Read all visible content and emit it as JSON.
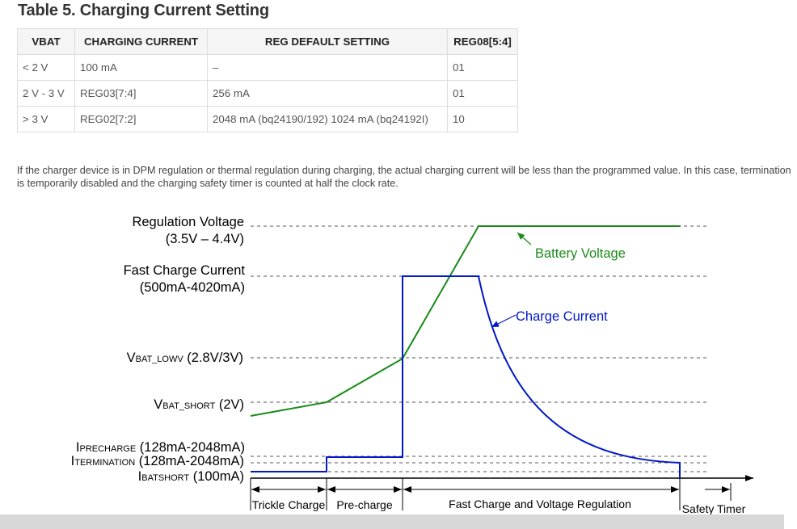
{
  "table_title": "Table 5. Charging Current Setting",
  "table": {
    "headers": [
      "VBAT",
      "CHARGING CURRENT",
      "REG DEFAULT SETTING",
      "REG08[5:4]"
    ],
    "rows": [
      [
        "< 2 V",
        "100 mA",
        "–",
        "01"
      ],
      [
        "2 V - 3 V",
        "REG03[7:4]",
        "256 mA",
        "01"
      ],
      [
        "> 3 V",
        "REG02[7:2]",
        "2048 mA (bq24190/192) 1024 mA (bq24192I)",
        "10"
      ]
    ]
  },
  "paragraph": "If the charger device is in DPM regulation or thermal regulation during charging, the actual charging current will be less than the programmed value. In this case, termination is temporarily disabled and the charging safety timer is counted at half the clock rate.",
  "figure": {
    "labels": {
      "reg_voltage_1": "Regulation Voltage",
      "reg_voltage_2": "(3.5V – 4.4V)",
      "fast_current_1": "Fast Charge Current",
      "fast_current_2": "(500mA-4020mA)",
      "vbat_lowv_main": "V",
      "vbat_lowv_sub": "BAT_LOWV",
      "vbat_lowv_val": " (2.8V/3V)",
      "vbat_short_main": "V",
      "vbat_short_sub": "BAT_SHORT",
      "vbat_short_val": " (2V)",
      "iprecharge_main": "I",
      "iprecharge_sub": "PRECHARGE",
      "iprecharge_val": " (128mA-2048mA)",
      "itermination_main": "I",
      "itermination_sub": "TERMINATION",
      "itermination_val": " (128mA-2048mA)",
      "ibatshort_main": "I",
      "ibatshort_sub": "BATSHORT",
      "ibatshort_val": " (100mA)",
      "battery_voltage": "Battery Voltage",
      "charge_current": "Charge Current"
    },
    "phases": {
      "trickle": "Trickle Charge",
      "precharge": "Pre-charge",
      "fast": "Fast Charge and Voltage Regulation",
      "safety": "Safety Timer"
    },
    "colors": {
      "battery_voltage": "#1a8a1a",
      "charge_current": "#0018c8"
    }
  }
}
